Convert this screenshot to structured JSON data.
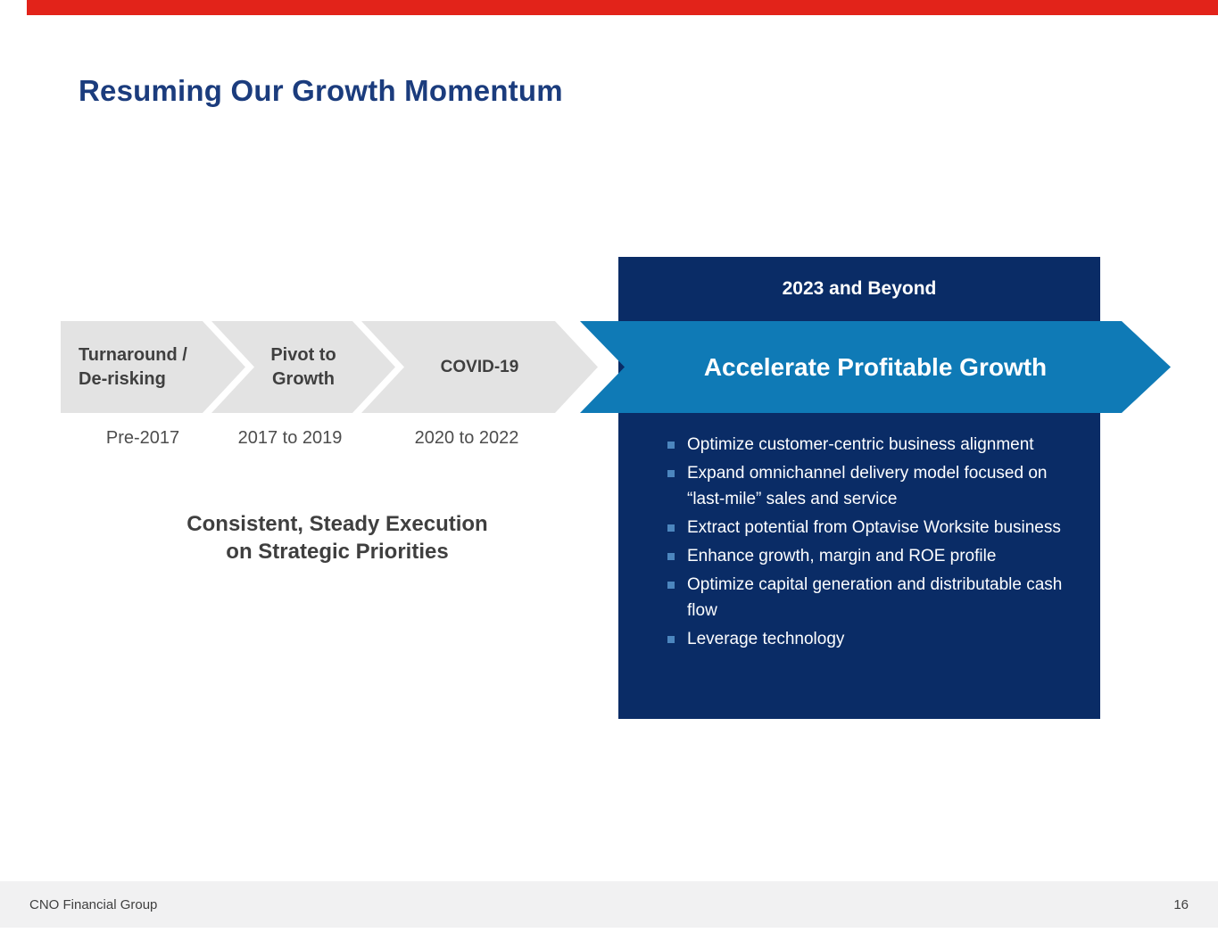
{
  "slide": {
    "title": "Resuming Our Growth Momentum",
    "colors": {
      "accent_red": "#e2231a",
      "title_blue": "#1b3c7d",
      "panel_navy": "#0a2c66",
      "arrow_blue": "#0f7ab6",
      "chevron_gray": "#e3e3e3",
      "bullet_marker_blue": "#4c86be"
    },
    "timeline": {
      "phases": [
        {
          "line1": "Turnaround /",
          "line2": "De-risking",
          "period": "Pre-2017"
        },
        {
          "line1": "Pivot to",
          "line2": "Growth",
          "period": "2017 to 2019"
        },
        {
          "line1": "COVID-19",
          "line2": "",
          "period": "2020 to 2022"
        }
      ],
      "caption_line1": "Consistent, Steady Execution",
      "caption_line2": "on Strategic Priorities"
    },
    "future": {
      "header": "2023 and Beyond",
      "arrow_label": "Accelerate Profitable Growth",
      "bullets": [
        "Optimize customer-centric business alignment",
        "Expand omnichannel delivery model focused on “last-mile” sales and service",
        "Extract potential from Optavise Worksite business",
        "Enhance growth, margin and ROE profile",
        "Optimize capital generation and distributable cash flow",
        "Leverage technology"
      ]
    },
    "footer": {
      "company": "CNO Financial Group",
      "page_number": "16"
    }
  }
}
